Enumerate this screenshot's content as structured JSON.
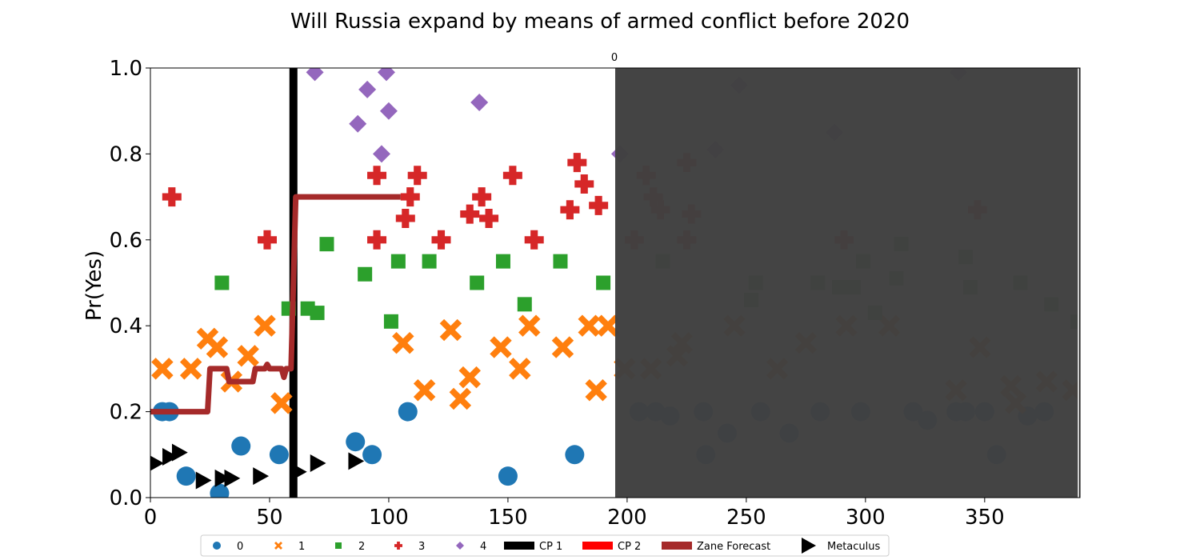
{
  "chart_data": {
    "type": "scatter",
    "title": "Will Russia expand by means of armed conflict before 2020",
    "xlabel": "",
    "ylabel": "Pr(Yes)",
    "xlim": [
      0,
      390
    ],
    "ylim": [
      0.0,
      1.0
    ],
    "x_ticks": [
      0,
      50,
      100,
      150,
      200,
      250,
      300,
      350
    ],
    "y_ticks": [
      "0.0",
      "0.2",
      "0.4",
      "0.6",
      "0.8",
      "1.0"
    ],
    "grid": false,
    "legend_position": "bottom",
    "shaded_region": {
      "x_start": 195,
      "x_end": 390,
      "color": "#404040",
      "label": "0"
    },
    "changepoint": {
      "name": "CP 1",
      "x": 60,
      "color": "#000000"
    },
    "colors": {
      "0": "#1f77b4",
      "1": "#ff7f0e",
      "2": "#2ca02c",
      "3": "#d62728",
      "4": "#9467bd",
      "cp1": "#000000",
      "cp2": "#ff0000",
      "zane": "#a52a2a",
      "metaculus": "#000000"
    },
    "series": [
      {
        "name": "0",
        "marker": "circle",
        "points": [
          [
            5,
            0.2
          ],
          [
            8,
            0.2
          ],
          [
            15,
            0.05
          ],
          [
            29,
            0.01
          ],
          [
            38,
            0.12
          ],
          [
            54,
            0.1
          ],
          [
            86,
            0.13
          ],
          [
            93,
            0.1
          ],
          [
            108,
            0.2
          ],
          [
            150,
            0.05
          ],
          [
            178,
            0.1
          ],
          [
            205,
            0.2
          ],
          [
            212,
            0.2
          ],
          [
            218,
            0.19
          ],
          [
            232,
            0.2
          ],
          [
            233,
            0.1
          ],
          [
            242,
            0.15
          ],
          [
            256,
            0.2
          ],
          [
            268,
            0.15
          ],
          [
            281,
            0.2
          ],
          [
            298,
            0.2
          ],
          [
            320,
            0.2
          ],
          [
            326,
            0.18
          ],
          [
            338,
            0.2
          ],
          [
            342,
            0.2
          ],
          [
            350,
            0.2
          ],
          [
            355,
            0.1
          ],
          [
            368,
            0.19
          ],
          [
            375,
            0.2
          ]
        ]
      },
      {
        "name": "1",
        "marker": "x",
        "points": [
          [
            5,
            0.3
          ],
          [
            17,
            0.3
          ],
          [
            24,
            0.37
          ],
          [
            28,
            0.35
          ],
          [
            34,
            0.27
          ],
          [
            41,
            0.33
          ],
          [
            48,
            0.4
          ],
          [
            55,
            0.22
          ],
          [
            106,
            0.36
          ],
          [
            115,
            0.25
          ],
          [
            126,
            0.39
          ],
          [
            130,
            0.23
          ],
          [
            134,
            0.28
          ],
          [
            147,
            0.35
          ],
          [
            155,
            0.3
          ],
          [
            159,
            0.4
          ],
          [
            173,
            0.35
          ],
          [
            184,
            0.4
          ],
          [
            187,
            0.25
          ],
          [
            192,
            0.4
          ],
          [
            199,
            0.3
          ],
          [
            210,
            0.3
          ],
          [
            221,
            0.33
          ],
          [
            223,
            0.36
          ],
          [
            245,
            0.4
          ],
          [
            263,
            0.3
          ],
          [
            275,
            0.36
          ],
          [
            292,
            0.4
          ],
          [
            310,
            0.4
          ],
          [
            338,
            0.25
          ],
          [
            348,
            0.35
          ],
          [
            361,
            0.26
          ],
          [
            363,
            0.22
          ],
          [
            376,
            0.27
          ],
          [
            387,
            0.25
          ]
        ]
      },
      {
        "name": "2",
        "marker": "square",
        "points": [
          [
            30,
            0.5
          ],
          [
            58,
            0.44
          ],
          [
            66,
            0.44
          ],
          [
            70,
            0.43
          ],
          [
            74,
            0.59
          ],
          [
            90,
            0.52
          ],
          [
            101,
            0.41
          ],
          [
            104,
            0.55
          ],
          [
            117,
            0.55
          ],
          [
            137,
            0.5
          ],
          [
            148,
            0.55
          ],
          [
            157,
            0.45
          ],
          [
            172,
            0.55
          ],
          [
            190,
            0.5
          ],
          [
            215,
            0.55
          ],
          [
            254,
            0.5
          ],
          [
            252,
            0.46
          ],
          [
            280,
            0.5
          ],
          [
            289,
            0.49
          ],
          [
            295,
            0.49
          ],
          [
            299,
            0.55
          ],
          [
            304,
            0.43
          ],
          [
            313,
            0.51
          ],
          [
            315,
            0.59
          ],
          [
            342,
            0.56
          ],
          [
            344,
            0.49
          ],
          [
            365,
            0.5
          ],
          [
            378,
            0.45
          ],
          [
            389,
            0.41
          ]
        ]
      },
      {
        "name": "3",
        "marker": "plus",
        "points": [
          [
            9,
            0.7
          ],
          [
            49,
            0.6
          ],
          [
            95,
            0.75
          ],
          [
            95,
            0.6
          ],
          [
            107,
            0.65
          ],
          [
            109,
            0.7
          ],
          [
            112,
            0.75
          ],
          [
            122,
            0.6
          ],
          [
            134,
            0.66
          ],
          [
            139,
            0.7
          ],
          [
            142,
            0.65
          ],
          [
            152,
            0.75
          ],
          [
            161,
            0.6
          ],
          [
            176,
            0.67
          ],
          [
            179,
            0.78
          ],
          [
            182,
            0.73
          ],
          [
            188,
            0.68
          ],
          [
            203,
            0.6
          ],
          [
            208,
            0.75
          ],
          [
            211,
            0.7
          ],
          [
            214,
            0.67
          ],
          [
            225,
            0.78
          ],
          [
            225,
            0.6
          ],
          [
            227,
            0.66
          ],
          [
            291,
            0.6
          ],
          [
            347,
            0.67
          ]
        ]
      },
      {
        "name": "4",
        "marker": "diamond",
        "points": [
          [
            69,
            0.99
          ],
          [
            87,
            0.87
          ],
          [
            91,
            0.95
          ],
          [
            97,
            0.8
          ],
          [
            99,
            0.99
          ],
          [
            100,
            0.9
          ],
          [
            138,
            0.92
          ],
          [
            197,
            0.8
          ],
          [
            247,
            0.96
          ],
          [
            237,
            0.81
          ],
          [
            287,
            0.85
          ],
          [
            339,
            0.99
          ]
        ]
      },
      {
        "name": "Metaculus",
        "marker": "triangle",
        "points": [
          [
            2,
            0.08
          ],
          [
            8,
            0.095
          ],
          [
            12,
            0.105
          ],
          [
            22,
            0.04
          ],
          [
            30,
            0.045
          ],
          [
            34,
            0.045
          ],
          [
            46,
            0.05
          ],
          [
            62,
            0.06
          ],
          [
            70,
            0.08
          ],
          [
            86,
            0.085
          ]
        ]
      }
    ],
    "zane_forecast": {
      "name": "Zane Forecast",
      "points": [
        [
          0,
          0.2
        ],
        [
          24,
          0.2
        ],
        [
          25,
          0.3
        ],
        [
          32,
          0.3
        ],
        [
          33,
          0.27
        ],
        [
          43,
          0.27
        ],
        [
          44,
          0.3
        ],
        [
          48,
          0.3
        ],
        [
          49,
          0.31
        ],
        [
          50,
          0.3
        ],
        [
          55,
          0.3
        ],
        [
          56,
          0.28
        ],
        [
          57,
          0.3
        ],
        [
          59,
          0.3
        ],
        [
          61,
          0.7
        ],
        [
          105,
          0.7
        ]
      ]
    },
    "legend": [
      {
        "label": "0",
        "type": "circle",
        "color": "#1f77b4"
      },
      {
        "label": "1",
        "type": "x",
        "color": "#ff7f0e"
      },
      {
        "label": "2",
        "type": "square",
        "color": "#2ca02c"
      },
      {
        "label": "3",
        "type": "plus",
        "color": "#d62728"
      },
      {
        "label": "4",
        "type": "diamond",
        "color": "#9467bd"
      },
      {
        "label": "CP 1",
        "type": "bar",
        "color": "#000000"
      },
      {
        "label": "CP 2",
        "type": "bar",
        "color": "#ff0000"
      },
      {
        "label": "Zane Forecast",
        "type": "bar",
        "color": "#a52a2a"
      },
      {
        "label": "Metaculus",
        "type": "triangle",
        "color": "#000000"
      }
    ]
  }
}
